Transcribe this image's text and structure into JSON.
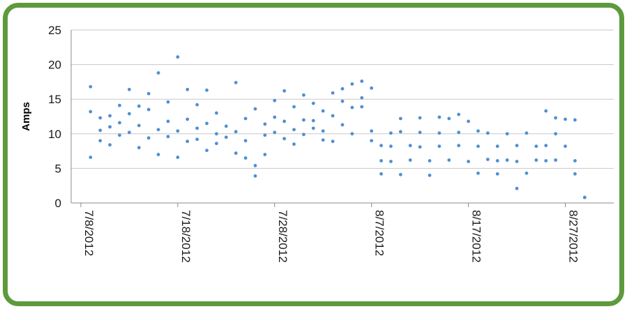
{
  "chart_data": {
    "type": "scatter",
    "title": "",
    "xlabel": "",
    "ylabel": "Amps",
    "ylim": [
      0,
      25
    ],
    "yticks": [
      0,
      5,
      10,
      15,
      20,
      25
    ],
    "xlim": [
      "2012-07-07",
      "2012-09-01"
    ],
    "xticks": [
      {
        "date": "2012-07-08",
        "label": "7/8/2012"
      },
      {
        "date": "2012-07-18",
        "label": "7/18/2012"
      },
      {
        "date": "2012-07-28",
        "label": "7/28/2012"
      },
      {
        "date": "2012-08-07",
        "label": "8/7/2012"
      },
      {
        "date": "2012-08-17",
        "label": "8/17/2012"
      },
      {
        "date": "2012-08-27",
        "label": "8/27/2012"
      }
    ],
    "grid": true,
    "marker_color": "#4f8fd1",
    "series": [
      {
        "points": [
          [
            "2012-07-09",
            6.6
          ],
          [
            "2012-07-09",
            16.8
          ],
          [
            "2012-07-09",
            13.2
          ],
          [
            "2012-07-10",
            10.5
          ],
          [
            "2012-07-10",
            9.0
          ],
          [
            "2012-07-10",
            12.3
          ],
          [
            "2012-07-11",
            8.4
          ],
          [
            "2012-07-11",
            11.0
          ],
          [
            "2012-07-11",
            12.6
          ],
          [
            "2012-07-12",
            14.1
          ],
          [
            "2012-07-12",
            9.8
          ],
          [
            "2012-07-12",
            11.6
          ],
          [
            "2012-07-13",
            16.4
          ],
          [
            "2012-07-13",
            10.2
          ],
          [
            "2012-07-13",
            12.9
          ],
          [
            "2012-07-14",
            14.0
          ],
          [
            "2012-07-14",
            11.2
          ],
          [
            "2012-07-14",
            8.0
          ],
          [
            "2012-07-15",
            9.4
          ],
          [
            "2012-07-15",
            13.5
          ],
          [
            "2012-07-15",
            15.8
          ],
          [
            "2012-07-16",
            18.8
          ],
          [
            "2012-07-16",
            10.6
          ],
          [
            "2012-07-16",
            7.0
          ],
          [
            "2012-07-17",
            11.8
          ],
          [
            "2012-07-17",
            9.6
          ],
          [
            "2012-07-17",
            14.6
          ],
          [
            "2012-07-18",
            21.1
          ],
          [
            "2012-07-18",
            10.4
          ],
          [
            "2012-07-18",
            6.6
          ],
          [
            "2012-07-19",
            16.4
          ],
          [
            "2012-07-19",
            12.1
          ],
          [
            "2012-07-19",
            8.9
          ],
          [
            "2012-07-20",
            10.8
          ],
          [
            "2012-07-20",
            14.2
          ],
          [
            "2012-07-20",
            9.2
          ],
          [
            "2012-07-21",
            16.3
          ],
          [
            "2012-07-21",
            11.5
          ],
          [
            "2012-07-21",
            7.6
          ],
          [
            "2012-07-22",
            10.0
          ],
          [
            "2012-07-22",
            13.0
          ],
          [
            "2012-07-22",
            8.6
          ],
          [
            "2012-07-23",
            11.1
          ],
          [
            "2012-07-23",
            9.5
          ],
          [
            "2012-07-24",
            17.4
          ],
          [
            "2012-07-24",
            10.3
          ],
          [
            "2012-07-24",
            7.2
          ],
          [
            "2012-07-25",
            12.2
          ],
          [
            "2012-07-25",
            9.0
          ],
          [
            "2012-07-25",
            6.5
          ],
          [
            "2012-07-26",
            13.6
          ],
          [
            "2012-07-26",
            5.4
          ],
          [
            "2012-07-26",
            3.9
          ],
          [
            "2012-07-27",
            9.8
          ],
          [
            "2012-07-27",
            7.0
          ],
          [
            "2012-07-27",
            11.4
          ],
          [
            "2012-07-28",
            14.8
          ],
          [
            "2012-07-28",
            10.2
          ],
          [
            "2012-07-28",
            12.4
          ],
          [
            "2012-07-29",
            16.2
          ],
          [
            "2012-07-29",
            9.3
          ],
          [
            "2012-07-29",
            11.8
          ],
          [
            "2012-07-30",
            13.9
          ],
          [
            "2012-07-30",
            10.6
          ],
          [
            "2012-07-30",
            8.5
          ],
          [
            "2012-07-31",
            15.6
          ],
          [
            "2012-07-31",
            12.0
          ],
          [
            "2012-07-31",
            9.9
          ],
          [
            "2012-08-01",
            14.4
          ],
          [
            "2012-08-01",
            10.8
          ],
          [
            "2012-08-01",
            11.9
          ],
          [
            "2012-08-02",
            13.3
          ],
          [
            "2012-08-02",
            9.1
          ],
          [
            "2012-08-02",
            10.4
          ],
          [
            "2012-08-03",
            15.9
          ],
          [
            "2012-08-03",
            12.6
          ],
          [
            "2012-08-03",
            8.9
          ],
          [
            "2012-08-04",
            14.7
          ],
          [
            "2012-08-04",
            11.3
          ],
          [
            "2012-08-04",
            16.5
          ],
          [
            "2012-08-05",
            17.2
          ],
          [
            "2012-08-05",
            13.8
          ],
          [
            "2012-08-05",
            10.0
          ],
          [
            "2012-08-06",
            17.6
          ],
          [
            "2012-08-06",
            15.2
          ],
          [
            "2012-08-06",
            13.9
          ],
          [
            "2012-08-07",
            16.6
          ],
          [
            "2012-08-07",
            10.4
          ],
          [
            "2012-08-07",
            9.0
          ],
          [
            "2012-08-08",
            8.3
          ],
          [
            "2012-08-08",
            6.1
          ],
          [
            "2012-08-08",
            4.2
          ],
          [
            "2012-08-09",
            10.1
          ],
          [
            "2012-08-09",
            8.2
          ],
          [
            "2012-08-09",
            6.0
          ],
          [
            "2012-08-10",
            12.2
          ],
          [
            "2012-08-10",
            10.3
          ],
          [
            "2012-08-10",
            4.1
          ],
          [
            "2012-08-11",
            8.3
          ],
          [
            "2012-08-11",
            6.2
          ],
          [
            "2012-08-12",
            12.3
          ],
          [
            "2012-08-12",
            10.2
          ],
          [
            "2012-08-12",
            8.1
          ],
          [
            "2012-08-13",
            6.1
          ],
          [
            "2012-08-13",
            4.0
          ],
          [
            "2012-08-14",
            12.4
          ],
          [
            "2012-08-14",
            10.1
          ],
          [
            "2012-08-14",
            8.2
          ],
          [
            "2012-08-15",
            12.2
          ],
          [
            "2012-08-15",
            6.2
          ],
          [
            "2012-08-16",
            12.8
          ],
          [
            "2012-08-16",
            10.2
          ],
          [
            "2012-08-16",
            8.3
          ],
          [
            "2012-08-17",
            11.8
          ],
          [
            "2012-08-17",
            6.0
          ],
          [
            "2012-08-18",
            10.4
          ],
          [
            "2012-08-18",
            8.2
          ],
          [
            "2012-08-18",
            4.3
          ],
          [
            "2012-08-19",
            10.1
          ],
          [
            "2012-08-19",
            6.3
          ],
          [
            "2012-08-20",
            8.2
          ],
          [
            "2012-08-20",
            6.1
          ],
          [
            "2012-08-20",
            4.2
          ],
          [
            "2012-08-21",
            10.0
          ],
          [
            "2012-08-21",
            6.2
          ],
          [
            "2012-08-22",
            8.3
          ],
          [
            "2012-08-22",
            6.0
          ],
          [
            "2012-08-22",
            2.1
          ],
          [
            "2012-08-23",
            10.1
          ],
          [
            "2012-08-23",
            4.3
          ],
          [
            "2012-08-24",
            8.2
          ],
          [
            "2012-08-24",
            6.2
          ],
          [
            "2012-08-25",
            13.3
          ],
          [
            "2012-08-25",
            8.3
          ],
          [
            "2012-08-25",
            6.1
          ],
          [
            "2012-08-26",
            12.3
          ],
          [
            "2012-08-26",
            10.0
          ],
          [
            "2012-08-26",
            6.2
          ],
          [
            "2012-08-27",
            12.1
          ],
          [
            "2012-08-27",
            8.2
          ],
          [
            "2012-08-28",
            12.0
          ],
          [
            "2012-08-28",
            6.1
          ],
          [
            "2012-08-28",
            4.2
          ],
          [
            "2012-08-29",
            0.8
          ],
          [
            "2012-08-29",
            0.8
          ]
        ]
      }
    ]
  }
}
